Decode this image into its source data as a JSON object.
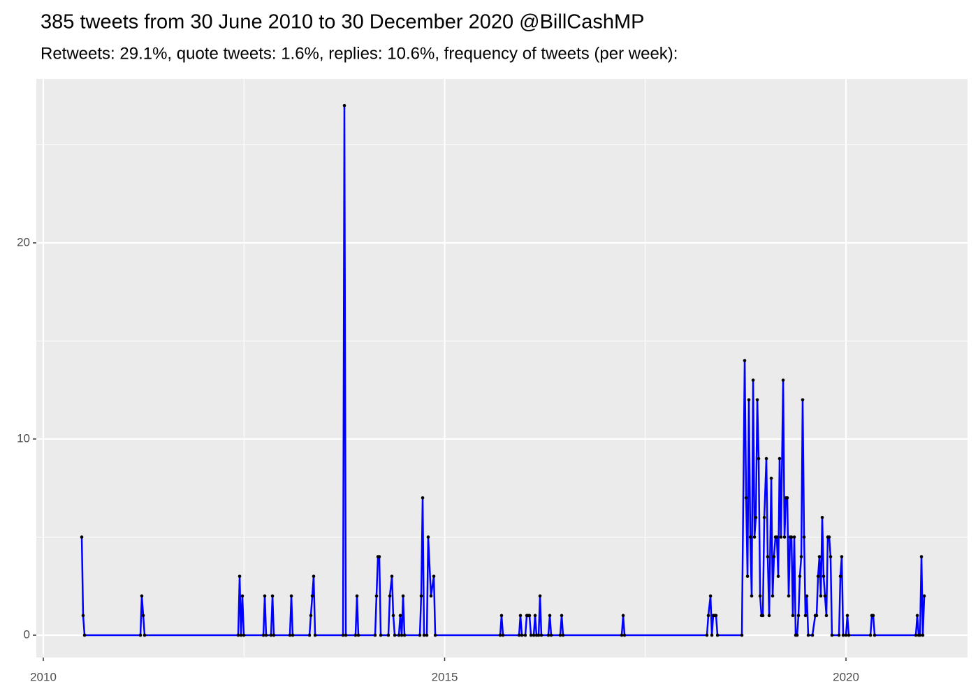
{
  "chart_data": {
    "type": "line",
    "title": "385 tweets from 30 June 2010 to 30 December 2020 @BillCashMP",
    "subtitle": "Retweets: 29.1%, quote tweets: 1.6%, replies: 10.6%, frequency of tweets (per week):",
    "x": [
      2010.479,
      2010.496,
      2010.514,
      2011.21,
      2011.227,
      2011.245,
      2011.262,
      2012.428,
      2012.446,
      2012.463,
      2012.48,
      2012.498,
      2012.742,
      2012.759,
      2012.776,
      2012.837,
      2012.855,
      2012.872,
      2013.072,
      2013.09,
      2013.107,
      2013.316,
      2013.333,
      2013.351,
      2013.368,
      2013.386,
      2013.734,
      2013.751,
      2013.769,
      2013.89,
      2013.908,
      2013.925,
      2014.134,
      2014.151,
      2014.169,
      2014.186,
      2014.204,
      2014.299,
      2014.317,
      2014.343,
      2014.36,
      2014.378,
      2014.43,
      2014.447,
      2014.465,
      2014.482,
      2014.5,
      2014.691,
      2014.708,
      2014.726,
      2014.743,
      2014.778,
      2014.795,
      2014.83,
      2014.865,
      2014.883,
      2015.692,
      2015.709,
      2015.727,
      2015.927,
      2015.944,
      2015.962,
      2016.005,
      2016.023,
      2016.04,
      2016.057,
      2016.075,
      2016.11,
      2016.127,
      2016.144,
      2016.171,
      2016.188,
      2016.205,
      2016.292,
      2016.31,
      2016.327,
      2016.44,
      2016.458,
      2016.475,
      2017.206,
      2017.224,
      2017.241,
      2018.268,
      2018.285,
      2018.312,
      2018.329,
      2018.346,
      2018.364,
      2018.381,
      2018.399,
      2018.703,
      2018.738,
      2018.756,
      2018.773,
      2018.79,
      2018.808,
      2018.825,
      2018.843,
      2018.86,
      2018.877,
      2018.895,
      2018.912,
      2018.93,
      2018.947,
      2018.964,
      2018.982,
      2019.008,
      2019.025,
      2019.043,
      2019.069,
      2019.086,
      2019.103,
      2019.121,
      2019.138,
      2019.156,
      2019.173,
      2019.19,
      2019.217,
      2019.234,
      2019.251,
      2019.269,
      2019.286,
      2019.304,
      2019.321,
      2019.338,
      2019.356,
      2019.373,
      2019.391,
      2019.408,
      2019.425,
      2019.443,
      2019.46,
      2019.478,
      2019.495,
      2019.512,
      2019.53,
      2019.582,
      2019.617,
      2019.634,
      2019.652,
      2019.669,
      2019.686,
      2019.704,
      2019.721,
      2019.738,
      2019.756,
      2019.773,
      2019.791,
      2019.808,
      2019.825,
      2019.913,
      2019.93,
      2019.947,
      2019.965,
      2020.0,
      2020.017,
      2020.035,
      2020.305,
      2020.322,
      2020.339,
      2020.357,
      2020.87,
      2020.888,
      2020.905,
      2020.922,
      2020.94,
      2020.957,
      2020.975
    ],
    "values": [
      5,
      1,
      0,
      0,
      2,
      1,
      0,
      0,
      3,
      0,
      2,
      0,
      0,
      2,
      0,
      0,
      2,
      0,
      0,
      2,
      0,
      0,
      1,
      2,
      3,
      0,
      0,
      27,
      0,
      0,
      2,
      0,
      0,
      2,
      4,
      4,
      0,
      0,
      2,
      3,
      1,
      0,
      0,
      1,
      0,
      2,
      0,
      0,
      2,
      7,
      0,
      0,
      5,
      2,
      3,
      0,
      0,
      1,
      0,
      0,
      1,
      0,
      0,
      1,
      1,
      1,
      0,
      0,
      1,
      0,
      0,
      2,
      0,
      0,
      1,
      0,
      0,
      1,
      0,
      0,
      1,
      0,
      0,
      1,
      2,
      0,
      1,
      1,
      1,
      0,
      0,
      14,
      7,
      3,
      12,
      5,
      2,
      13,
      5,
      6,
      12,
      9,
      2,
      1,
      1,
      6,
      9,
      4,
      1,
      8,
      2,
      4,
      5,
      5,
      3,
      9,
      5,
      13,
      5,
      7,
      7,
      2,
      5,
      5,
      1,
      5,
      0,
      0,
      1,
      3,
      4,
      12,
      5,
      1,
      2,
      0,
      0,
      1,
      1,
      3,
      4,
      2,
      6,
      3,
      2,
      1,
      5,
      5,
      4,
      0,
      0,
      3,
      4,
      0,
      0,
      1,
      0,
      0,
      1,
      1,
      0,
      0,
      1,
      0,
      0,
      4,
      0,
      2
    ],
    "color": "#0000ff",
    "point_color": "#000000",
    "xlim": [
      2009.913,
      2021.514
    ],
    "xticks": [
      2010,
      2015,
      2020
    ],
    "x_minor_grid": [
      2012.5,
      2017.5
    ],
    "ylim": [
      -1.14,
      28.36
    ],
    "yticks": [
      0,
      10,
      20
    ],
    "y_minor_grid": [
      5,
      15,
      25
    ],
    "grid": true
  }
}
